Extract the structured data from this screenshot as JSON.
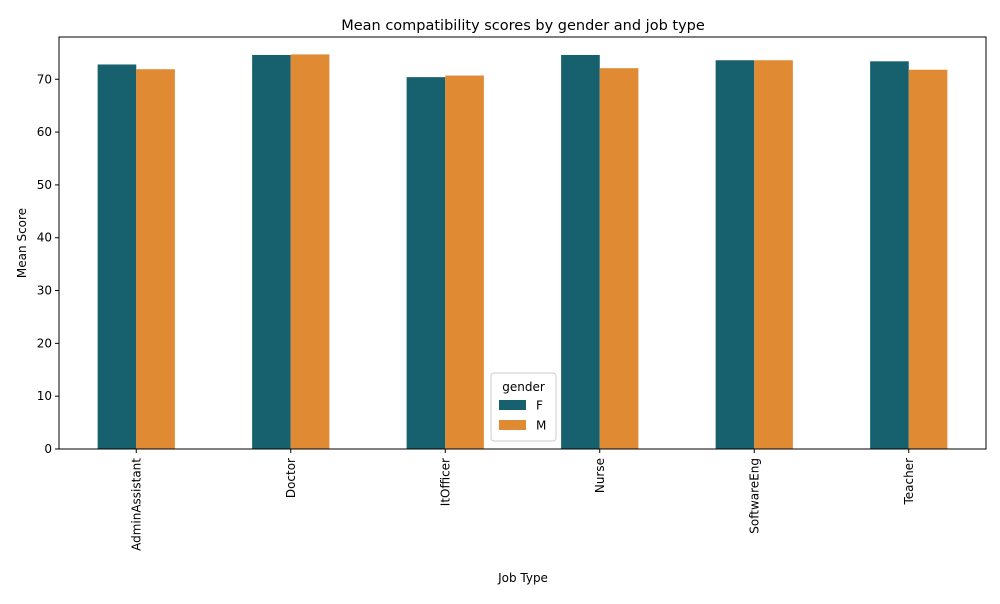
{
  "chart_data": {
    "type": "bar",
    "title": "Mean compatibility scores by gender and job type",
    "xlabel": "Job Type",
    "ylabel": "Mean Score",
    "categories": [
      "AdminAssistant",
      "Doctor",
      "ItOfficer",
      "Nurse",
      "SoftwareEng",
      "Teacher"
    ],
    "series": [
      {
        "name": "F",
        "color": "#17616e",
        "values": [
          72.8,
          74.6,
          70.4,
          74.6,
          73.6,
          73.4
        ]
      },
      {
        "name": "M",
        "color": "#e08a33",
        "values": [
          71.9,
          74.7,
          70.7,
          72.1,
          73.6,
          71.8
        ]
      }
    ],
    "ylim": [
      0,
      78
    ],
    "yticks": [
      0,
      10,
      20,
      30,
      40,
      50,
      60,
      70
    ],
    "grid": false,
    "legend": {
      "title": "gender",
      "placement": "bottom-center"
    }
  }
}
